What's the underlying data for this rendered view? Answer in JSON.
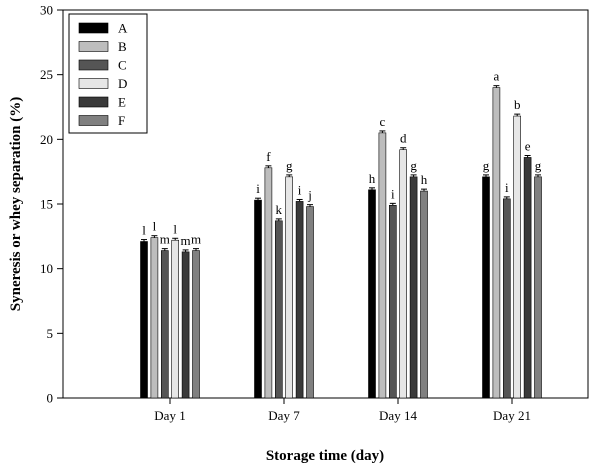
{
  "chart_data": {
    "type": "bar",
    "title": "",
    "xlabel": "Storage time (day)",
    "ylabel": "Syneresis or whey separation (%)",
    "ylim": [
      0,
      30
    ],
    "yticks": [
      0,
      5,
      10,
      15,
      20,
      25,
      30
    ],
    "categories": [
      "Day 1",
      "Day 7",
      "Day 14",
      "Day 21"
    ],
    "legend_position": "top-left",
    "series": [
      {
        "name": "A",
        "color": "#000000",
        "values": [
          12.1,
          15.3,
          16.1,
          17.1
        ],
        "errors": [
          0.15,
          0.15,
          0.15,
          0.15
        ],
        "labels": [
          "l",
          "i",
          "h",
          "g"
        ]
      },
      {
        "name": "B",
        "color": "#bdbdbd",
        "values": [
          12.4,
          17.8,
          20.5,
          24.0
        ],
        "errors": [
          0.15,
          0.15,
          0.15,
          0.15
        ],
        "labels": [
          "l",
          "f",
          "c",
          "a"
        ]
      },
      {
        "name": "C",
        "color": "#555555",
        "values": [
          11.4,
          13.7,
          14.9,
          15.4
        ],
        "errors": [
          0.15,
          0.15,
          0.15,
          0.15
        ],
        "labels": [
          "m",
          "k",
          "i",
          "i"
        ]
      },
      {
        "name": "D",
        "color": "#e6e6e6",
        "values": [
          12.2,
          17.1,
          19.2,
          21.8
        ],
        "errors": [
          0.15,
          0.15,
          0.15,
          0.15
        ],
        "labels": [
          "l",
          "g",
          "d",
          "b"
        ]
      },
      {
        "name": "E",
        "color": "#3a3a3a",
        "values": [
          11.3,
          15.2,
          17.1,
          18.6
        ],
        "errors": [
          0.15,
          0.15,
          0.15,
          0.15
        ],
        "labels": [
          "m",
          "i",
          "g",
          "e"
        ]
      },
      {
        "name": "F",
        "color": "#808080",
        "values": [
          11.4,
          14.8,
          16.0,
          17.1
        ],
        "errors": [
          0.15,
          0.15,
          0.15,
          0.15
        ],
        "labels": [
          "m",
          "j",
          "h",
          "g"
        ]
      }
    ]
  }
}
